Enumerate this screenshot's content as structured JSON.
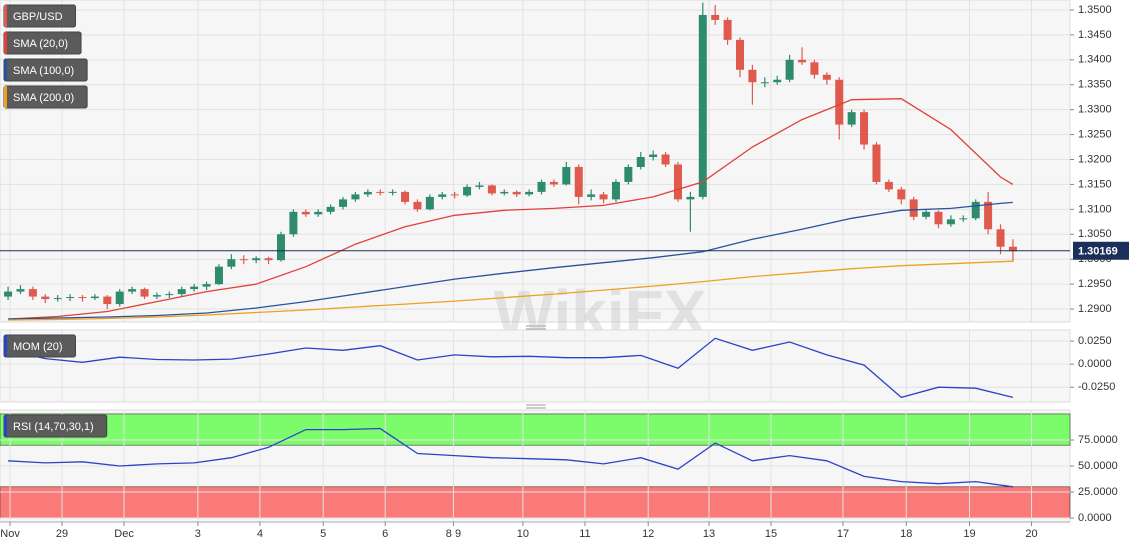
{
  "chart_data": [
    {
      "type": "candlestick",
      "name": "GBP/USD",
      "watermark": "WikiFX",
      "up_color": "#2e8b6e",
      "down_color": "#df5a4c",
      "ohlc": [
        [
          1.2925,
          1.2945,
          1.2918,
          1.2935
        ],
        [
          1.2935,
          1.2948,
          1.293,
          1.294
        ],
        [
          1.294,
          1.2945,
          1.2918,
          1.2925
        ],
        [
          1.2925,
          1.293,
          1.2912,
          1.292
        ],
        [
          1.292,
          1.2928,
          1.2915,
          1.2922
        ],
        [
          1.2922,
          1.293,
          1.2916,
          1.2924
        ],
        [
          1.2924,
          1.2928,
          1.2915,
          1.2922
        ],
        [
          1.2922,
          1.293,
          1.2918,
          1.2925
        ],
        [
          1.2925,
          1.2928,
          1.29,
          1.291
        ],
        [
          1.291,
          1.294,
          1.2905,
          1.2935
        ],
        [
          1.2935,
          1.2945,
          1.293,
          1.294
        ],
        [
          1.294,
          1.2943,
          1.292,
          1.2925
        ],
        [
          1.2925,
          1.2933,
          1.292,
          1.2928
        ],
        [
          1.2928,
          1.2935,
          1.2922,
          1.293
        ],
        [
          1.293,
          1.2945,
          1.2925,
          1.294
        ],
        [
          1.294,
          1.295,
          1.2935,
          1.2945
        ],
        [
          1.2945,
          1.2955,
          1.2938,
          1.295
        ],
        [
          1.295,
          1.299,
          1.2948,
          1.2985
        ],
        [
          1.2985,
          1.301,
          1.298,
          1.3
        ],
        [
          1.3,
          1.3008,
          1.299,
          1.2998
        ],
        [
          1.2998,
          1.3006,
          1.2992,
          1.3002
        ],
        [
          1.3002,
          1.3005,
          1.299,
          1.2998
        ],
        [
          1.2998,
          1.3055,
          1.2995,
          1.305
        ],
        [
          1.305,
          1.31,
          1.3045,
          1.3095
        ],
        [
          1.3095,
          1.31,
          1.3085,
          1.309
        ],
        [
          1.309,
          1.31,
          1.3085,
          1.3095
        ],
        [
          1.3095,
          1.311,
          1.309,
          1.3105
        ],
        [
          1.3105,
          1.3125,
          1.31,
          1.312
        ],
        [
          1.312,
          1.3135,
          1.3115,
          1.313
        ],
        [
          1.313,
          1.314,
          1.3125,
          1.3135
        ],
        [
          1.3135,
          1.314,
          1.3128,
          1.3133
        ],
        [
          1.3133,
          1.314,
          1.3128,
          1.3135
        ],
        [
          1.3135,
          1.3138,
          1.311,
          1.3115
        ],
        [
          1.3115,
          1.312,
          1.3095,
          1.31
        ],
        [
          1.31,
          1.313,
          1.3098,
          1.3125
        ],
        [
          1.3125,
          1.3135,
          1.312,
          1.313
        ],
        [
          1.313,
          1.3135,
          1.3122,
          1.3128
        ],
        [
          1.3128,
          1.315,
          1.3125,
          1.3145
        ],
        [
          1.3145,
          1.3155,
          1.314,
          1.3148
        ],
        [
          1.3148,
          1.315,
          1.3128,
          1.3132
        ],
        [
          1.3132,
          1.314,
          1.3128,
          1.3135
        ],
        [
          1.3135,
          1.3138,
          1.3125,
          1.313
        ],
        [
          1.313,
          1.314,
          1.3126,
          1.3135
        ],
        [
          1.3135,
          1.316,
          1.313,
          1.3155
        ],
        [
          1.3155,
          1.316,
          1.3145,
          1.315
        ],
        [
          1.315,
          1.3195,
          1.3148,
          1.3185
        ],
        [
          1.3185,
          1.319,
          1.311,
          1.3125
        ],
        [
          1.3125,
          1.314,
          1.3118,
          1.313
        ],
        [
          1.313,
          1.3135,
          1.3112,
          1.312
        ],
        [
          1.312,
          1.316,
          1.3115,
          1.3155
        ],
        [
          1.3155,
          1.319,
          1.315,
          1.3185
        ],
        [
          1.3185,
          1.3215,
          1.318,
          1.3205
        ],
        [
          1.3205,
          1.3218,
          1.3198,
          1.321
        ],
        [
          1.321,
          1.3215,
          1.3185,
          1.319
        ],
        [
          1.319,
          1.3195,
          1.3115,
          1.312
        ],
        [
          1.312,
          1.3135,
          1.3055,
          1.3125
        ],
        [
          1.3125,
          1.3515,
          1.312,
          1.349
        ],
        [
          1.349,
          1.351,
          1.347,
          1.348
        ],
        [
          1.348,
          1.3485,
          1.343,
          1.344
        ],
        [
          1.344,
          1.3445,
          1.3365,
          1.338
        ],
        [
          1.338,
          1.339,
          1.331,
          1.3355
        ],
        [
          1.3355,
          1.3365,
          1.3345,
          1.3355
        ],
        [
          1.3355,
          1.3368,
          1.335,
          1.336
        ],
        [
          1.336,
          1.341,
          1.3355,
          1.34
        ],
        [
          1.34,
          1.3425,
          1.339,
          1.3395
        ],
        [
          1.3395,
          1.34,
          1.3362,
          1.337
        ],
        [
          1.337,
          1.3375,
          1.335,
          1.336
        ],
        [
          1.336,
          1.3365,
          1.324,
          1.327
        ],
        [
          1.327,
          1.33,
          1.3265,
          1.3295
        ],
        [
          1.3295,
          1.33,
          1.322,
          1.323
        ],
        [
          1.323,
          1.3235,
          1.315,
          1.3155
        ],
        [
          1.3155,
          1.316,
          1.3135,
          1.314
        ],
        [
          1.314,
          1.3145,
          1.311,
          1.312
        ],
        [
          1.312,
          1.3125,
          1.3078,
          1.3085
        ],
        [
          1.3085,
          1.31,
          1.308,
          1.3095
        ],
        [
          1.3095,
          1.3098,
          1.3062,
          1.307
        ],
        [
          1.307,
          1.3088,
          1.3065,
          1.308
        ],
        [
          1.308,
          1.3088,
          1.3075,
          1.3082
        ],
        [
          1.3082,
          1.312,
          1.3078,
          1.3115
        ],
        [
          1.3115,
          1.3135,
          1.305,
          1.306
        ],
        [
          1.306,
          1.307,
          1.301,
          1.3025
        ],
        [
          1.3025,
          1.304,
          1.2995,
          1.3016
        ]
      ],
      "series": [
        {
          "name": "SMA (20,0)",
          "color": "#e0403a",
          "x": [
            0,
            4,
            8,
            12,
            16,
            20,
            24,
            28,
            32,
            36,
            40,
            44,
            48,
            52,
            56,
            60,
            64,
            68,
            72,
            76,
            80,
            81
          ],
          "values": [
            1.288,
            1.2885,
            1.2895,
            1.2915,
            1.2935,
            1.295,
            1.2985,
            1.303,
            1.3065,
            1.3088,
            1.3098,
            1.3102,
            1.3108,
            1.3125,
            1.3155,
            1.3225,
            1.328,
            1.332,
            1.3322,
            1.326,
            1.3165,
            1.315
          ]
        },
        {
          "name": "SMA (100,0)",
          "color": "#27539b",
          "x": [
            0,
            4,
            8,
            12,
            16,
            20,
            24,
            28,
            32,
            36,
            40,
            44,
            48,
            52,
            56,
            60,
            64,
            68,
            72,
            76,
            80,
            81
          ],
          "values": [
            1.288,
            1.2882,
            1.2884,
            1.2887,
            1.2892,
            1.2902,
            1.2915,
            1.293,
            1.2945,
            1.296,
            1.2972,
            1.2983,
            1.2993,
            1.3003,
            1.3015,
            1.304,
            1.306,
            1.3082,
            1.3098,
            1.3102,
            1.3112,
            1.3114
          ]
        },
        {
          "name": "SMA (200,0)",
          "color": "#f0a020",
          "x": [
            0,
            4,
            8,
            12,
            16,
            20,
            24,
            28,
            32,
            36,
            40,
            44,
            48,
            52,
            56,
            60,
            64,
            68,
            72,
            76,
            80,
            81
          ],
          "values": [
            1.2878,
            1.2879,
            1.2881,
            1.2884,
            1.2888,
            1.2893,
            1.2898,
            1.2904,
            1.291,
            1.2916,
            1.2923,
            1.293,
            1.2938,
            1.2946,
            1.2955,
            1.2965,
            1.2973,
            1.2981,
            1.2987,
            1.2991,
            1.2995,
            1.2996
          ]
        }
      ],
      "last_price": 1.30169,
      "last_price_color": "#1c2e5a",
      "xlim": [
        -0.65,
        85.6
      ],
      "ylim": [
        1.2874,
        1.352
      ],
      "yticks": [
        {
          "value": 1.29,
          "label": "1.2900"
        },
        {
          "value": 1.295,
          "label": "1.2950"
        },
        {
          "value": 1.3,
          "label": "1.3000"
        },
        {
          "value": 1.305,
          "label": "1.3050"
        },
        {
          "value": 1.31,
          "label": "1.3100"
        },
        {
          "value": 1.315,
          "label": "1.3150"
        },
        {
          "value": 1.32,
          "label": "1.3200"
        },
        {
          "value": 1.325,
          "label": "1.3250"
        },
        {
          "value": 1.33,
          "label": "1.3300"
        },
        {
          "value": 1.335,
          "label": "1.3350"
        },
        {
          "value": 1.34,
          "label": "1.3400"
        },
        {
          "value": 1.345,
          "label": "1.3450"
        },
        {
          "value": 1.35,
          "label": "1.3500"
        }
      ],
      "grid": true
    },
    {
      "type": "line",
      "xlim": [
        -0.65,
        85.6
      ],
      "ylim": [
        -0.041,
        0.037
      ],
      "yticks": [
        {
          "value": -0.025,
          "label": "-0.0250"
        },
        {
          "value": 0,
          "label": "0.0000"
        },
        {
          "value": 0.025,
          "label": "0.0250"
        }
      ],
      "series": [
        {
          "name": "MOM (20)",
          "color": "#2a44c8",
          "x": [
            0,
            3,
            6,
            9,
            12,
            15,
            18,
            21,
            24,
            27,
            30,
            33,
            36,
            39,
            42,
            45,
            48,
            51,
            54,
            57,
            60,
            63,
            66,
            69,
            72,
            75,
            78,
            81
          ],
          "values": [
            0.015,
            0.006,
            0.002,
            0.0075,
            0.005,
            0.0045,
            0.0055,
            0.011,
            0.0175,
            0.015,
            0.02,
            0.0045,
            0.01,
            0.008,
            0.0085,
            0.007,
            0.007,
            0.0095,
            -0.0045,
            0.028,
            0.015,
            0.024,
            0.01,
            -0.001,
            -0.036,
            -0.025,
            -0.026,
            -0.036
          ]
        }
      ],
      "grid": true
    },
    {
      "type": "line",
      "xlim": [
        -0.65,
        85.6
      ],
      "ylim": [
        -3.8,
        103.8
      ],
      "yticks": [
        {
          "value": 0,
          "label": "0.0000"
        },
        {
          "value": 25,
          "label": "25.0000"
        },
        {
          "value": 50,
          "label": "50.0000"
        },
        {
          "value": 75,
          "label": "75.0000"
        }
      ],
      "bands": [
        {
          "from": 70,
          "to": 100,
          "color": "#7cfc6a"
        },
        {
          "from": 0,
          "to": 30,
          "color": "#fa7a7a"
        }
      ],
      "series": [
        {
          "name": "RSI (14,70,30,1)",
          "color": "#2a44c8",
          "x": [
            0,
            3,
            6,
            9,
            12,
            15,
            18,
            21,
            24,
            27,
            30,
            33,
            36,
            39,
            42,
            45,
            48,
            51,
            54,
            57,
            60,
            63,
            66,
            69,
            72,
            75,
            78,
            81
          ],
          "values": [
            55,
            53,
            54,
            50,
            52,
            53,
            58,
            68,
            85,
            85,
            86,
            62,
            60,
            58,
            57,
            56,
            52,
            58,
            47,
            72,
            55,
            60,
            55,
            40,
            35,
            33,
            35,
            30
          ]
        }
      ],
      "xticks": [
        {
          "value": 0.16,
          "label": "Nov"
        },
        {
          "value": 4.35,
          "label": "29"
        },
        {
          "value": 9.35,
          "label": "Dec"
        },
        {
          "value": 15.3,
          "label": "3"
        },
        {
          "value": 20.3,
          "label": "4"
        },
        {
          "value": 25.4,
          "label": "5"
        },
        {
          "value": 30.4,
          "label": "6"
        },
        {
          "value": 35.9,
          "label": "8 9"
        },
        {
          "value": 41.5,
          "label": "10"
        },
        {
          "value": 46.5,
          "label": "11"
        },
        {
          "value": 51.6,
          "label": "12"
        },
        {
          "value": 56.5,
          "label": "13"
        },
        {
          "value": 61.5,
          "label": "15"
        },
        {
          "value": 67.3,
          "label": "17"
        },
        {
          "value": 72.4,
          "label": "18"
        },
        {
          "value": 77.5,
          "label": "19"
        },
        {
          "value": 82.5,
          "label": "20"
        }
      ],
      "grid": true
    }
  ]
}
